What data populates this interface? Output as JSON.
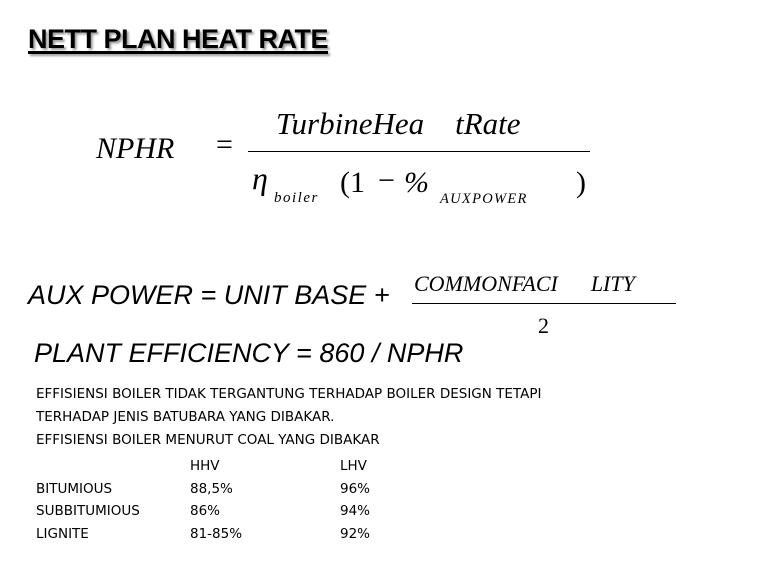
{
  "title": "NETT PLAN HEAT RATE",
  "formula_nphr": {
    "lhs": "NPHR",
    "equals": "=",
    "numerator": "TurbineHea    tRate",
    "eta": "η",
    "eta_subscript": "boiler",
    "paren_open": "(1",
    "minus": "−",
    "percent": "%",
    "percent_subscript": "AUXPOWER",
    "paren_close": ")"
  },
  "formula_aux": {
    "lhs": "AUX POWER = UNIT BASE +",
    "numerator": "COMMONFACI      LITY",
    "denominator": "2"
  },
  "formula_efficiency": "PLANT EFFICIENCY = 860 / NPHR",
  "notes": [
    "EFFISIENSI BOILER TIDAK TERGANTUNG TERHADAP BOILER DESIGN TETAPI",
    "TERHADAP JENIS BATUBARA YANG DIBAKAR.",
    "EFFISIENSI BOILER MENURUT COAL YANG DIBAKAR"
  ],
  "efficiency_table": {
    "headers": [
      "",
      "HHV",
      "LHV"
    ],
    "rows": [
      [
        "BITUMIOUS",
        "88,5%",
        "96%"
      ],
      [
        "SUBBITUMIOUS",
        "86%",
        "94%"
      ],
      [
        "LIGNITE",
        "81-85%",
        "92%"
      ]
    ]
  }
}
